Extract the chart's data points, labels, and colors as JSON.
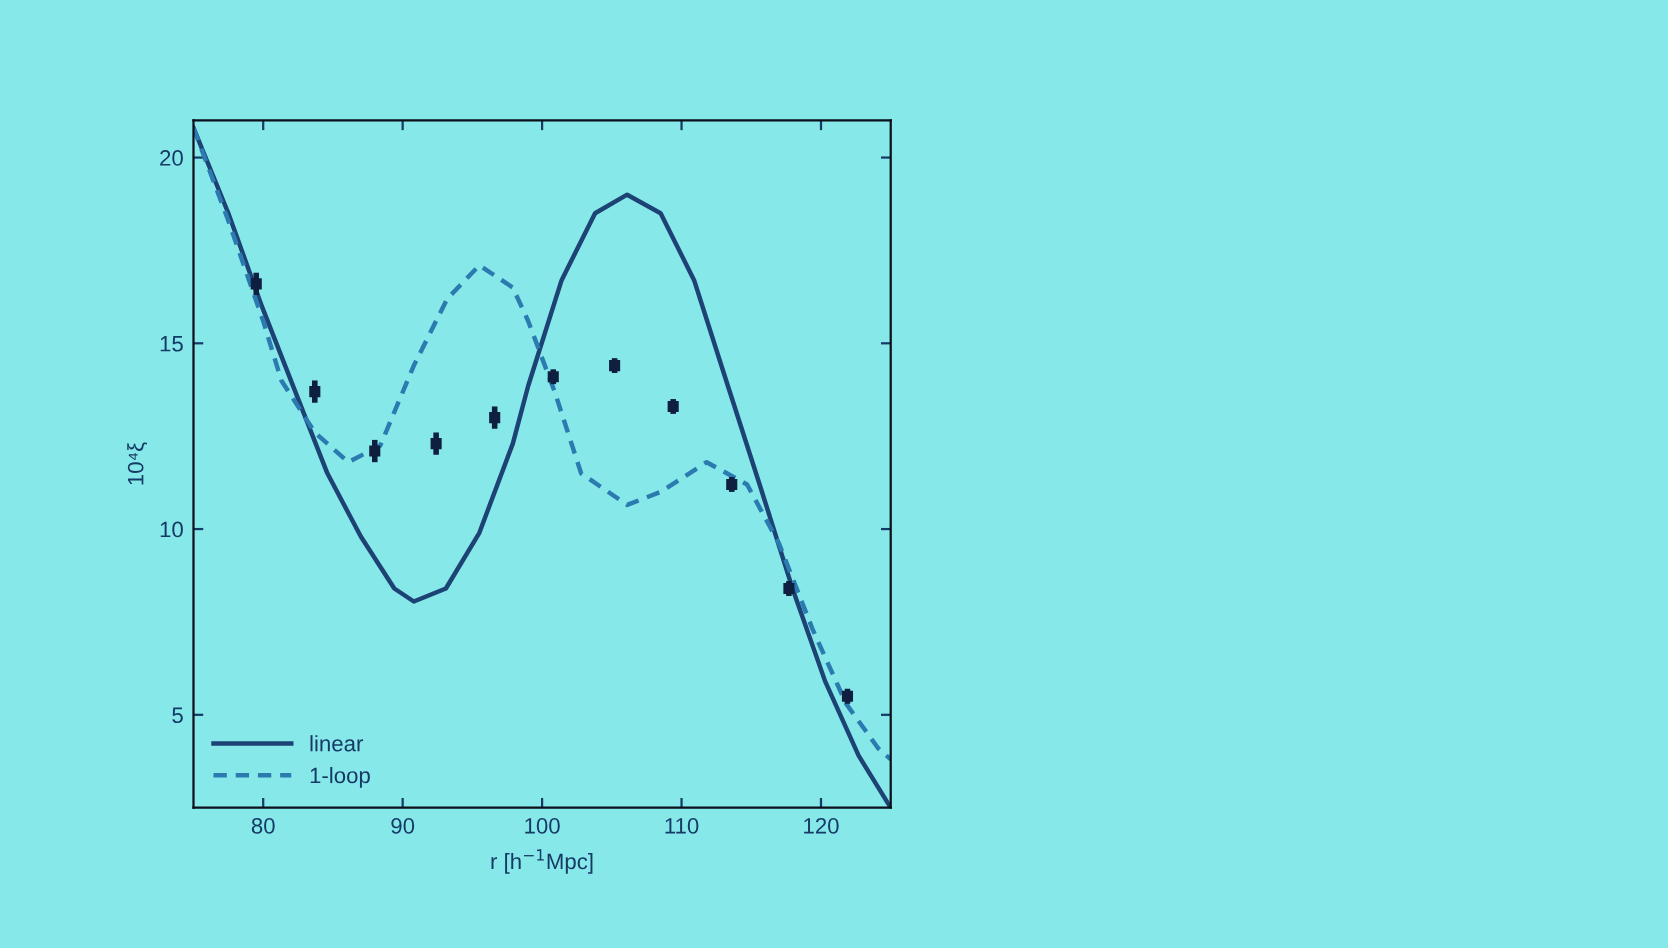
{
  "chart_data": {
    "type": "line",
    "xlabel": "r [h$^{−1}$Mpc]",
    "ylabel": "10⁴ξ",
    "xlim": [
      75,
      125
    ],
    "ylim": [
      2.5,
      21
    ],
    "xticks": [
      80,
      90,
      100,
      110,
      120
    ],
    "yticks": [
      5,
      10,
      15,
      20
    ],
    "grid": false,
    "legend": "bottom left",
    "series": [
      {
        "name": "linear",
        "color": "#1d4274",
        "line_style": "solid",
        "marker": "none",
        "x": [
          75,
          77.5,
          79.9,
          82.3,
          84.6,
          87.0,
          89.4,
          90.8,
          93.1,
          95.5,
          97.9,
          99.0,
          101.4,
          103.8,
          106.1,
          108.5,
          110.9,
          113.2,
          115.6,
          118.0,
          120.3,
          122.7,
          125
        ],
        "values": [
          20.8,
          18.5,
          16.0,
          13.7,
          11.5,
          9.8,
          8.4,
          8.05,
          8.4,
          9.9,
          12.3,
          13.85,
          16.7,
          18.5,
          19.0,
          18.5,
          16.7,
          14.0,
          11.2,
          8.35,
          5.9,
          3.9,
          2.5
        ]
      },
      {
        "name": "1-loop",
        "color": "#2b7bb0",
        "line_style": "dashed",
        "marker": "none",
        "x": [
          75,
          77.5,
          80.0,
          81.3,
          83.7,
          86.1,
          88.4,
          90.8,
          93.2,
          95.5,
          97.9,
          99.0,
          100.9,
          102.8,
          106.1,
          108.5,
          111.8,
          114.7,
          117.0,
          119.4,
          121.8,
          124.1,
          125
        ],
        "values": [
          20.8,
          18.3,
          15.6,
          14.0,
          12.6,
          11.8,
          12.25,
          14.4,
          16.2,
          17.1,
          16.5,
          15.6,
          13.7,
          11.5,
          10.65,
          11.0,
          11.8,
          11.2,
          9.6,
          7.3,
          5.3,
          4.1,
          3.8
        ]
      },
      {
        "type": "scatter",
        "color": "#0f1f40",
        "marker": "square",
        "x": [
          79.5,
          83.7,
          88.0,
          92.4,
          96.6,
          100.8,
          105.2,
          109.4,
          113.6,
          117.7,
          121.9
        ],
        "values": [
          16.6,
          13.7,
          12.1,
          12.3,
          13.0,
          14.1,
          14.4,
          13.3,
          11.2,
          8.4,
          5.5
        ],
        "errors": [
          0.3,
          0.3,
          0.3,
          0.3,
          0.3,
          0.2,
          0.2,
          0.2,
          0.2,
          0.2,
          0.2
        ]
      }
    ]
  }
}
